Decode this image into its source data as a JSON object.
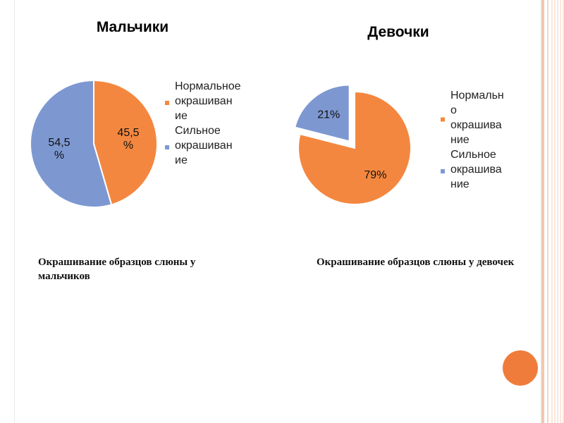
{
  "chart_data": [
    {
      "type": "pie",
      "title": "Мальчики",
      "categories": [
        "Нормальное окрашивание",
        "Сильное окрашивание"
      ],
      "values": [
        45.5,
        54.5
      ],
      "data_labels": [
        [
          "45,5",
          "%"
        ],
        [
          "54,5",
          "%"
        ]
      ],
      "colors": [
        "#f4873f",
        "#7d98d1"
      ],
      "legend": {
        "placement": "right",
        "entries": [
          {
            "lines": [
              "Нормальное",
              "окрашиван",
              "ие"
            ]
          },
          {
            "lines": [
              "Сильное",
              "окрашиван",
              "ие"
            ]
          }
        ]
      }
    },
    {
      "type": "pie",
      "title": "Девочки",
      "categories": [
        "Нормальное окрашивание",
        "Сильное окрашивание"
      ],
      "values": [
        79,
        21
      ],
      "exploded": [
        false,
        true
      ],
      "data_labels": [
        [
          "79%"
        ],
        [
          "21%"
        ]
      ],
      "colors": [
        "#f4873f",
        "#7d98d1"
      ],
      "legend": {
        "placement": "right",
        "entries": [
          {
            "lines": [
              "Нормальн",
              "о",
              "окрашива",
              "ние"
            ]
          },
          {
            "lines": [
              "Сильное",
              "окрашива",
              "ние"
            ]
          }
        ]
      }
    }
  ],
  "captions": {
    "boys": "Окрашивание образцов слюны у мальчиков",
    "girls": "Окрашивание образцов слюны у девочек"
  }
}
